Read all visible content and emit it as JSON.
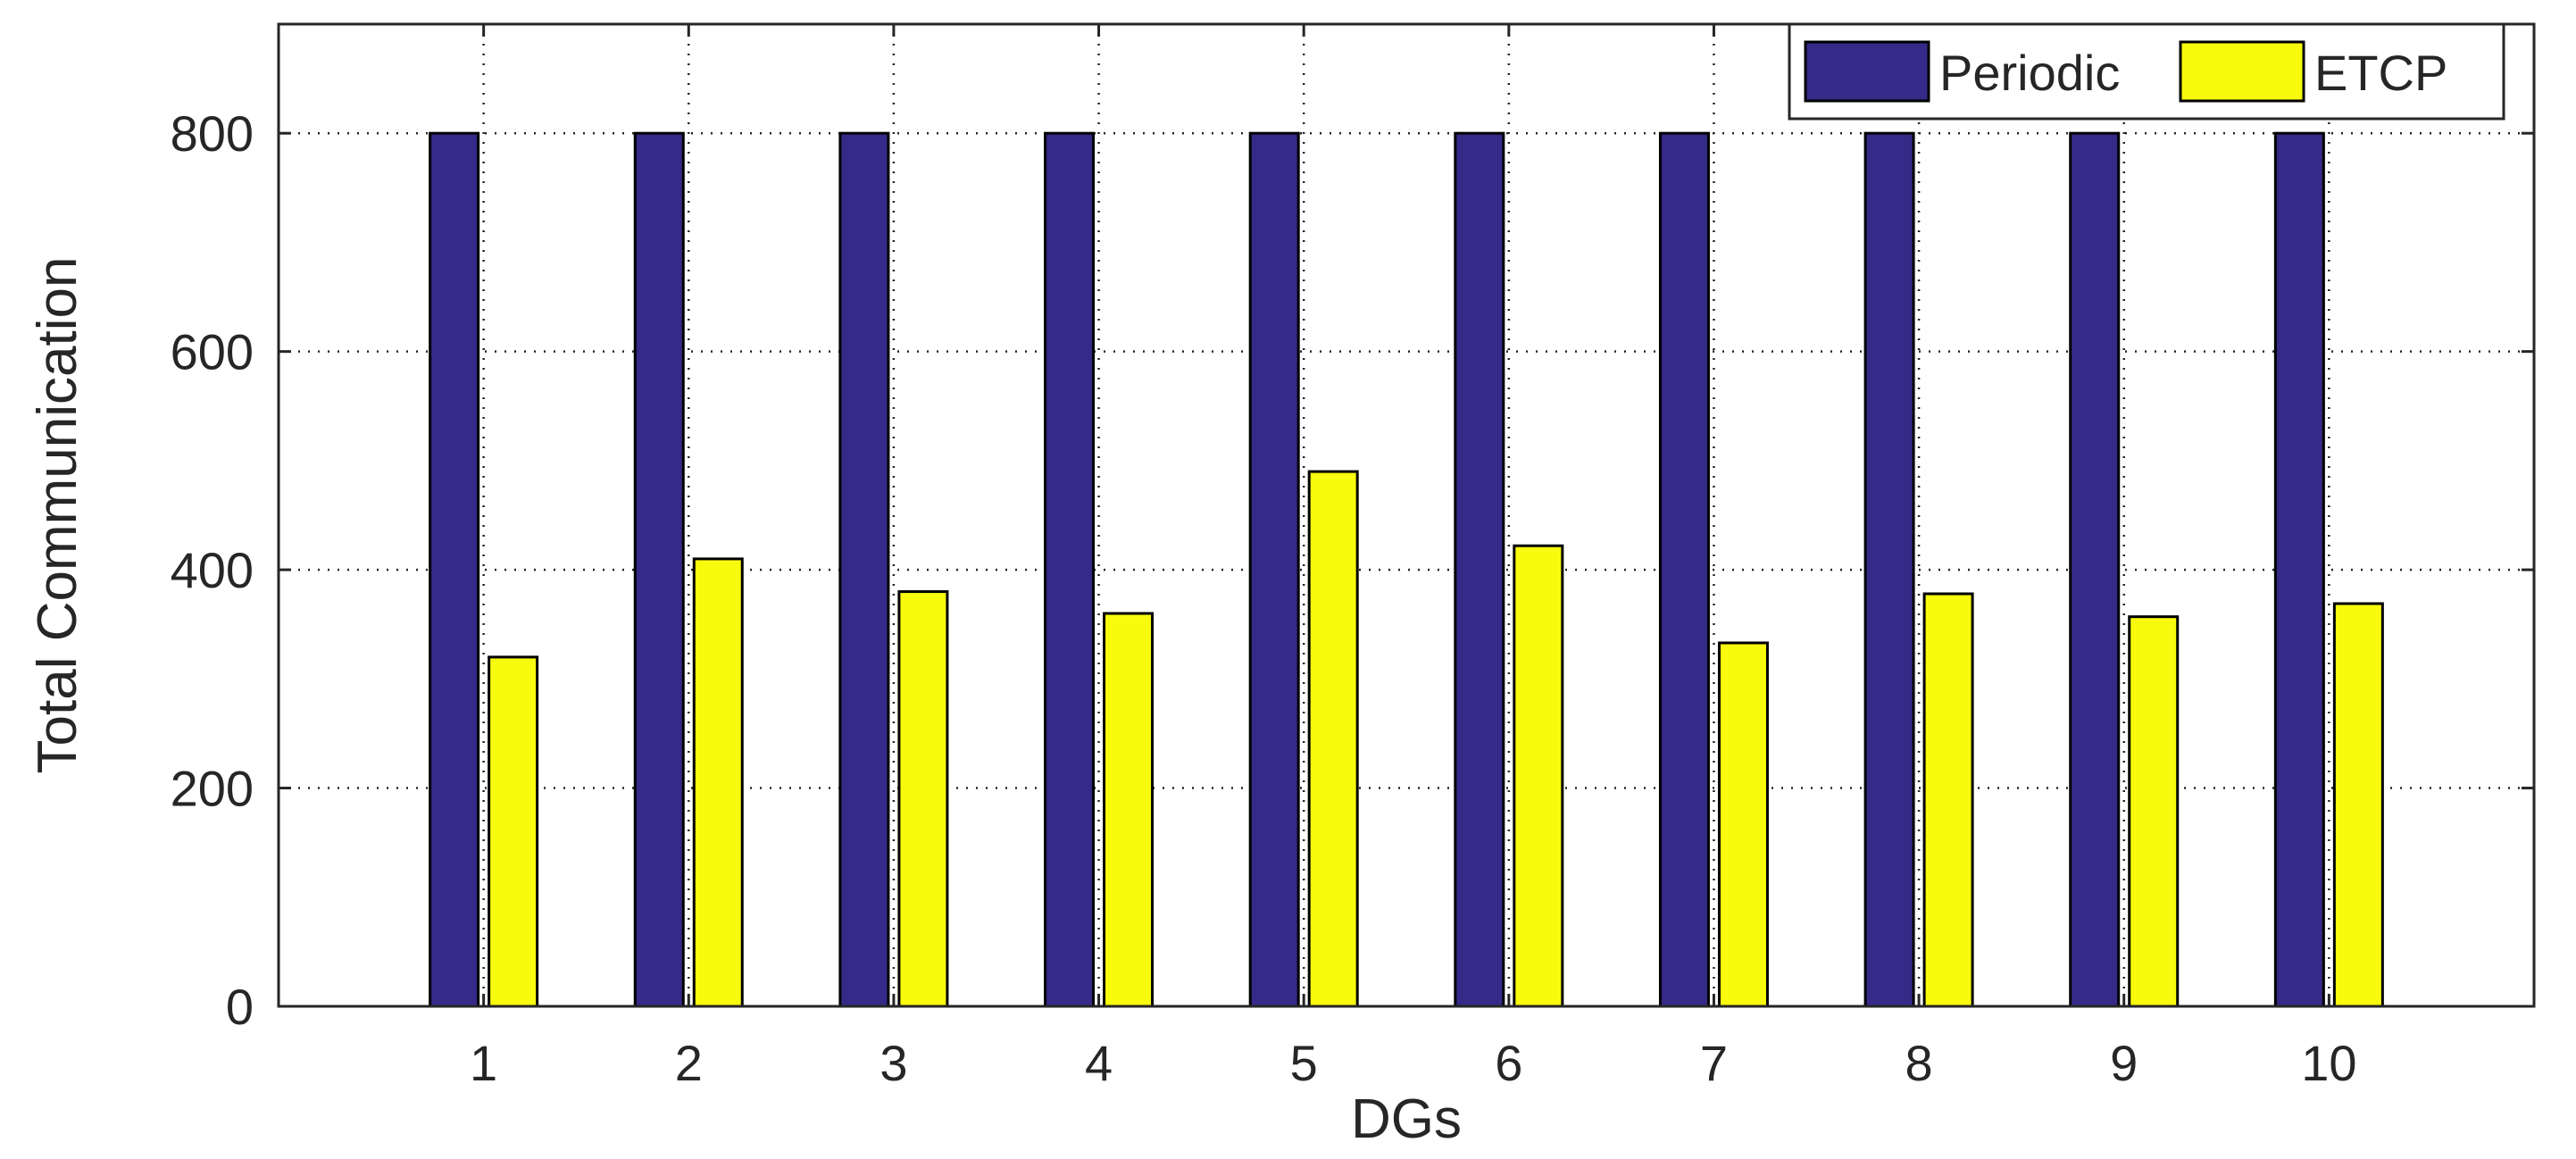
{
  "chart_data": {
    "type": "bar",
    "title": "",
    "xlabel": "DGs",
    "ylabel": "Total Communication",
    "categories": [
      "1",
      "2",
      "3",
      "4",
      "5",
      "6",
      "7",
      "8",
      "9",
      "10"
    ],
    "series": [
      {
        "name": "Periodic",
        "color": "#352A87",
        "values": [
          800,
          800,
          800,
          800,
          800,
          800,
          800,
          800,
          800,
          800
        ]
      },
      {
        "name": "ETCP",
        "color": "#F9FB0E",
        "values": [
          320,
          410,
          380,
          360,
          490,
          422,
          333,
          378,
          357,
          369
        ]
      }
    ],
    "ylim": [
      0,
      900
    ],
    "yticks": [
      0,
      200,
      400,
      600,
      800
    ],
    "xlim": [
      0,
      11
    ],
    "grid": true,
    "legend_position": "top-right"
  }
}
